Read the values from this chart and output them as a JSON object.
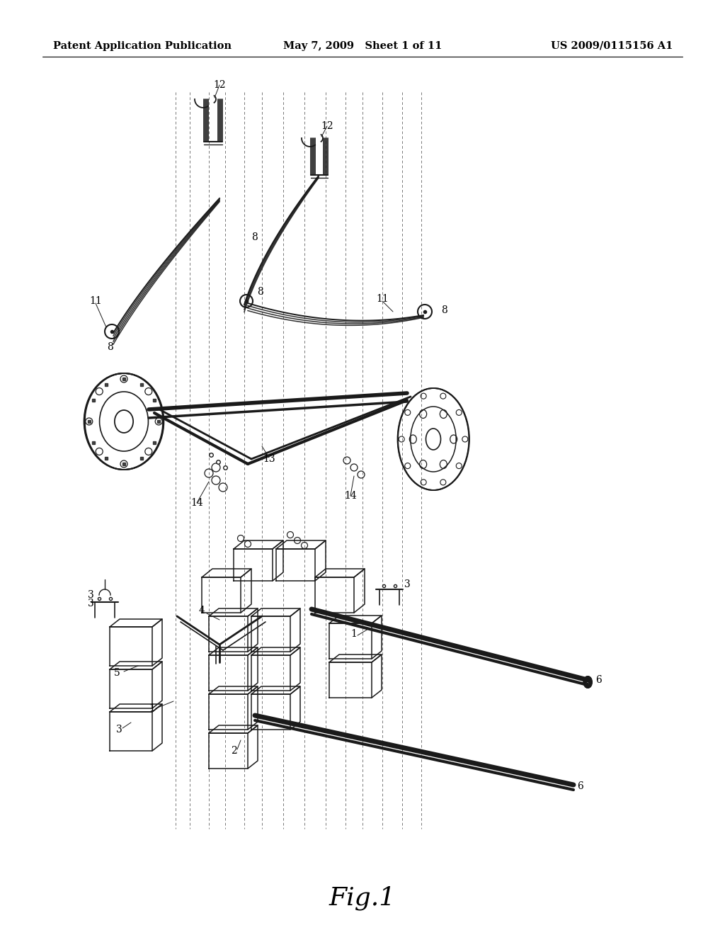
{
  "bg_color": "#ffffff",
  "header_left": "Patent Application Publication",
  "header_mid": "May 7, 2009   Sheet 1 of 11",
  "header_right": "US 2009/0115156 A1",
  "fig_label": "Fig.1",
  "header_fontsize": 10.5,
  "fig_label_fontsize": 26,
  "line_color": "#1a1a1a",
  "label_fontsize": 10,
  "dashed_color": "#555555",
  "drawing_lw": 1.3
}
